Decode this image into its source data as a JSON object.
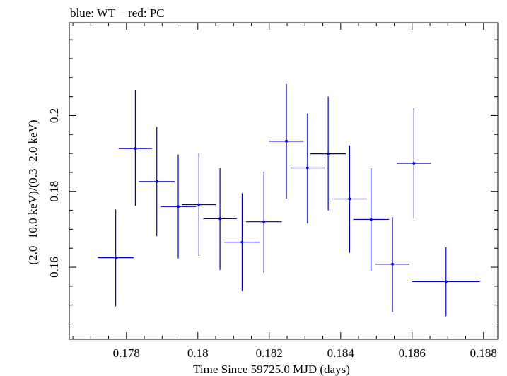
{
  "chart_data": {
    "type": "scatter",
    "title": "blue: WT − red: PC",
    "xlabel": "Time Since 59725.0 MJD (days)",
    "ylabel": "(2.0−10.0 keV)/(0.3−2.0 keV)",
    "xlim": [
      0.1764,
      0.1884
    ],
    "ylim": [
      0.141,
      0.2245
    ],
    "x_major_ticks": [
      0.178,
      0.18,
      0.182,
      0.184,
      0.186,
      0.188
    ],
    "x_tick_labels": [
      "0.178",
      "0.18",
      "0.182",
      "0.184",
      "0.186",
      "0.188"
    ],
    "x_minor_step": 0.0005,
    "y_major_ticks": [
      0.16,
      0.18,
      0.2
    ],
    "y_tick_labels": [
      "0.16",
      "0.18",
      "0.2"
    ],
    "y_minor_step": 0.005,
    "grid": false,
    "series": [
      {
        "name": "WT",
        "color": "#0000cc",
        "points": [
          {
            "x": 0.1777,
            "xerr": 0.0005,
            "y": 0.1625,
            "ylo": 0.1497,
            "yhi": 0.1752
          },
          {
            "x": 0.17825,
            "xerr": 0.00047,
            "y": 0.1913,
            "ylo": 0.1762,
            "yhi": 0.2066
          },
          {
            "x": 0.17885,
            "xerr": 0.0005,
            "y": 0.1826,
            "ylo": 0.1682,
            "yhi": 0.197
          },
          {
            "x": 0.17945,
            "xerr": 0.0005,
            "y": 0.176,
            "ylo": 0.1623,
            "yhi": 0.1897
          },
          {
            "x": 0.18003,
            "xerr": 0.00048,
            "y": 0.1765,
            "ylo": 0.163,
            "yhi": 0.1901
          },
          {
            "x": 0.18062,
            "xerr": 0.00047,
            "y": 0.1728,
            "ylo": 0.1593,
            "yhi": 0.1862
          },
          {
            "x": 0.18124,
            "xerr": 0.0005,
            "y": 0.1666,
            "ylo": 0.1537,
            "yhi": 0.1795
          },
          {
            "x": 0.18185,
            "xerr": 0.0005,
            "y": 0.172,
            "ylo": 0.1586,
            "yhi": 0.1852
          },
          {
            "x": 0.18248,
            "xerr": 0.00048,
            "y": 0.1932,
            "ylo": 0.1781,
            "yhi": 0.2083
          },
          {
            "x": 0.18307,
            "xerr": 0.00048,
            "y": 0.1862,
            "ylo": 0.1716,
            "yhi": 0.2005
          },
          {
            "x": 0.18365,
            "xerr": 0.0005,
            "y": 0.1899,
            "ylo": 0.175,
            "yhi": 0.205
          },
          {
            "x": 0.18425,
            "xerr": 0.0005,
            "y": 0.178,
            "ylo": 0.1638,
            "yhi": 0.1921
          },
          {
            "x": 0.18485,
            "xerr": 0.0005,
            "y": 0.1726,
            "ylo": 0.159,
            "yhi": 0.1861
          },
          {
            "x": 0.18545,
            "xerr": 0.00048,
            "y": 0.1608,
            "ylo": 0.1482,
            "yhi": 0.1732
          },
          {
            "x": 0.18605,
            "xerr": 0.00048,
            "y": 0.1874,
            "ylo": 0.1728,
            "yhi": 0.202
          },
          {
            "x": 0.18695,
            "xerr": 0.00095,
            "y": 0.1562,
            "ylo": 0.1471,
            "yhi": 0.1653
          }
        ]
      }
    ]
  }
}
